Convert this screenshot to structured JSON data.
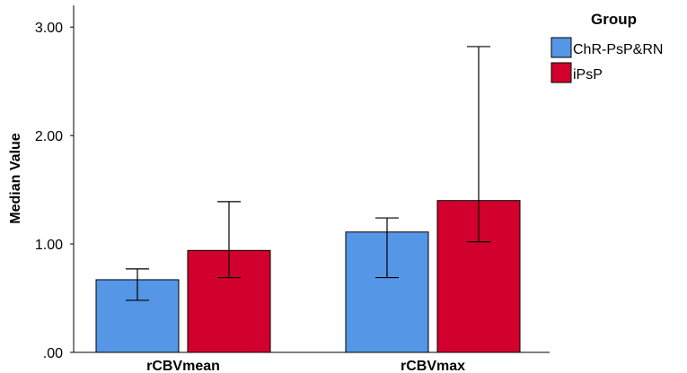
{
  "chart_data": {
    "type": "bar",
    "title": "",
    "xlabel": "",
    "ylabel": "Median Value",
    "ylim": [
      0,
      3.2
    ],
    "yticks": [
      0,
      1,
      2,
      3
    ],
    "ytick_labels": [
      ".00",
      "1.00",
      "2.00",
      "3.00"
    ],
    "categories": [
      "rCBVmean",
      "rCBVmax"
    ],
    "legend_title": "Group",
    "legend_position": "top-right",
    "series": [
      {
        "name": "ChR-PsP&RN",
        "color": "#5596e6",
        "values": [
          0.67,
          1.11
        ],
        "err_low": [
          0.48,
          0.69
        ],
        "err_high": [
          0.77,
          1.24
        ]
      },
      {
        "name": "iPsP",
        "color": "#d2002d",
        "values": [
          0.94,
          1.4
        ],
        "err_low": [
          0.69,
          1.02
        ],
        "err_high": [
          1.39,
          2.82
        ]
      }
    ]
  }
}
